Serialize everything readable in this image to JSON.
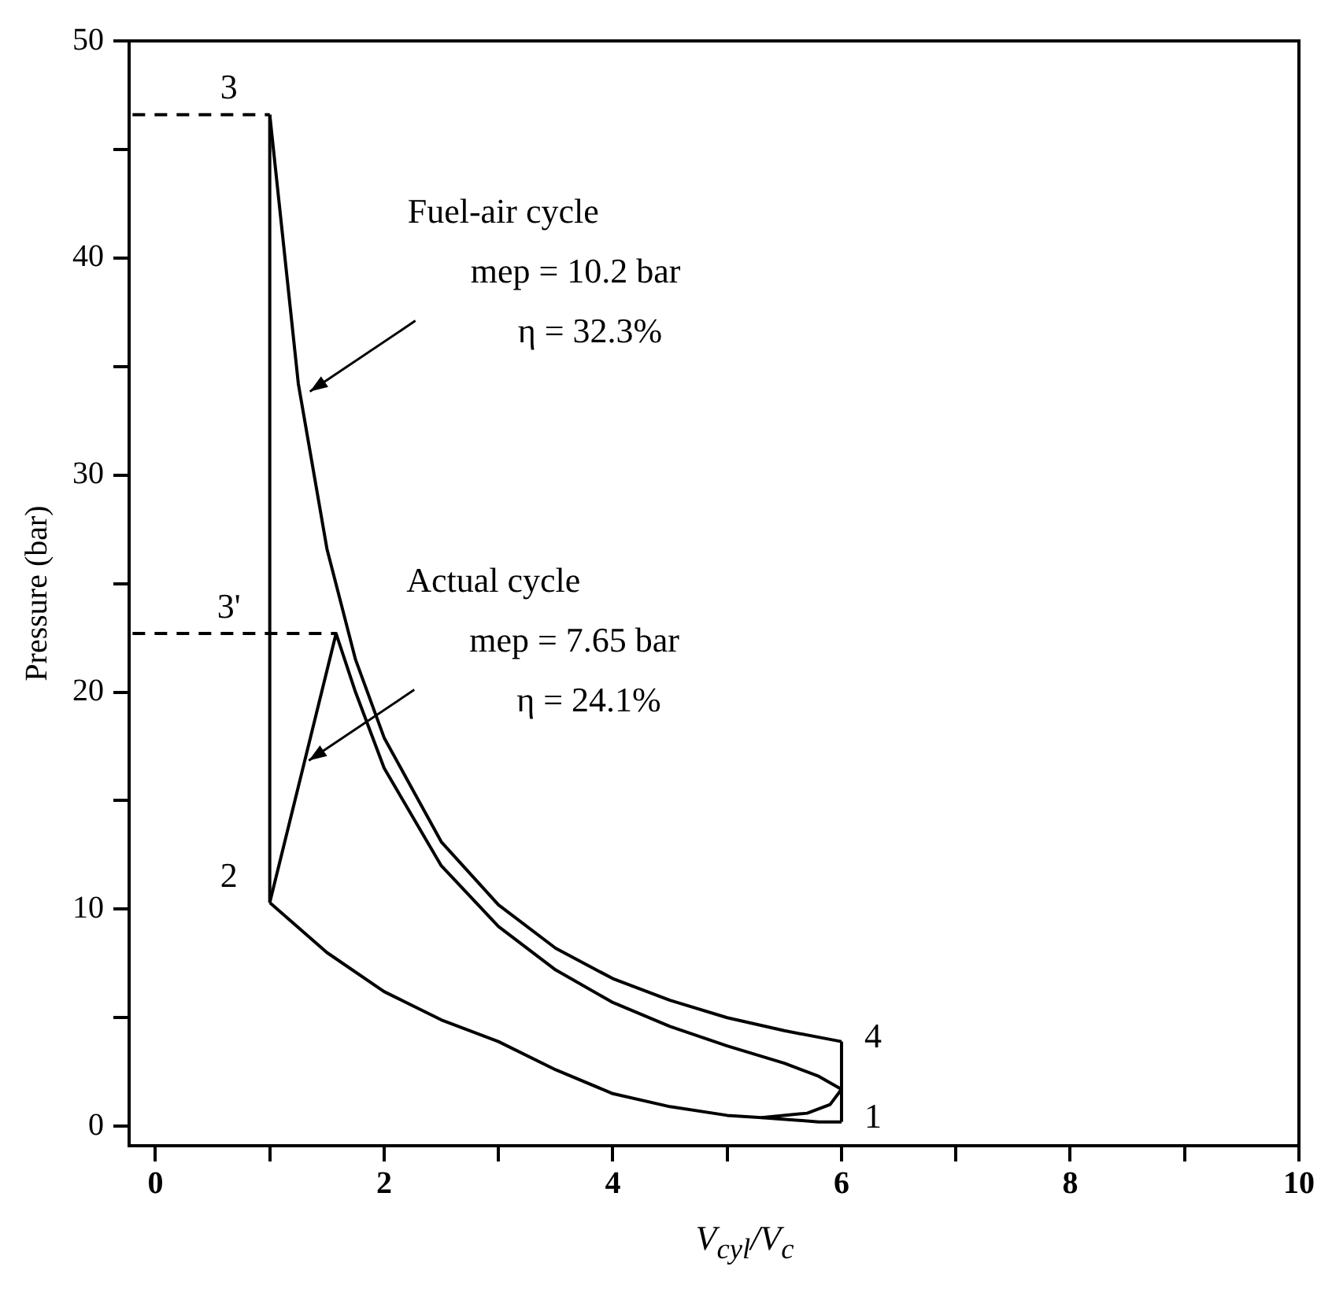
{
  "chart_data": {
    "type": "line",
    "xlabel": "V$_{cyl}$/V$_{c}$",
    "ylabel": "Pressure (bar)",
    "xlim": [
      -0.23,
      10
    ],
    "xticks": [
      0,
      {
        "value": 1,
        "label": null
      },
      2,
      {
        "value": 3,
        "label": null
      },
      4,
      {
        "value": 5,
        "label": null
      },
      6,
      {
        "value": 7,
        "label": null
      },
      8,
      {
        "value": 9,
        "label": null
      },
      10
    ],
    "ylim": [
      -0.9,
      50
    ],
    "yticks": [
      0,
      {
        "value": 5,
        "label": null
      },
      10,
      {
        "value": 15,
        "label": null
      },
      20,
      {
        "value": 25,
        "label": null
      },
      30,
      {
        "value": 35,
        "label": null
      },
      40,
      {
        "value": 45,
        "label": null
      },
      50
    ],
    "grid": false,
    "legend": false,
    "marker": "none",
    "series": [
      {
        "color": "#000000",
        "line_style": "solid",
        "x": [
          1,
          1.25,
          1.5,
          1.75,
          2,
          2.5,
          3,
          3.5,
          4,
          4.5,
          5,
          5.5,
          6
        ],
        "values": [
          46.6,
          34.2,
          26.6,
          21.5,
          17.9,
          13.1,
          10.2,
          8.2,
          6.8,
          5.8,
          5.0,
          4.4,
          3.9
        ]
      },
      {
        "color": "#000000",
        "line_style": "solid",
        "x": [
          1,
          1
        ],
        "values": [
          10.3,
          46.6
        ]
      },
      {
        "color": "#000000",
        "line_style": "solid",
        "x": [
          6,
          6
        ],
        "values": [
          0.2,
          3.9
        ]
      },
      {
        "color": "#000000",
        "line_style": "solid",
        "x": [
          1,
          1.5,
          2,
          2.5,
          3,
          3.5,
          4,
          4.5,
          5,
          5.3,
          5.8,
          6
        ],
        "values": [
          10.3,
          8.0,
          6.2,
          4.9,
          3.9,
          2.6,
          1.5,
          0.9,
          0.5,
          0.4,
          0.2,
          0.2
        ]
      },
      {
        "color": "#000000",
        "line_style": "solid",
        "x": [
          1,
          1.58,
          1.75,
          2,
          2.5,
          3,
          3.5,
          4,
          4.5,
          5,
          5.5,
          5.8,
          6
        ],
        "values": [
          10.3,
          22.7,
          20.0,
          16.5,
          12.0,
          9.2,
          7.2,
          5.7,
          4.6,
          3.7,
          2.9,
          2.3,
          1.7
        ]
      },
      {
        "color": "#000000",
        "line_style": "solid",
        "x": [
          5.3,
          5.7,
          5.9,
          6
        ],
        "values": [
          0.4,
          0.6,
          1.0,
          1.7
        ]
      },
      {
        "color": "#000000",
        "line_style": "dashed",
        "x": [
          -0.2,
          1
        ],
        "values": [
          46.6,
          46.6
        ]
      },
      {
        "color": "#000000",
        "line_style": "dashed",
        "x": [
          -0.2,
          1.58
        ],
        "values": [
          22.7,
          22.7
        ]
      }
    ],
    "annotations": [
      {
        "text": "3",
        "x": 1,
        "y": 46.6
      },
      {
        "text": "3'",
        "x": 1,
        "y": 22.7
      },
      {
        "text": "2",
        "x": 1,
        "y": 10.3
      },
      {
        "text": "4",
        "x": 6,
        "y": 3.9
      },
      {
        "text": "1",
        "x": 6,
        "y": 0.2
      },
      {
        "text": "Fuel-air cycle\nmep = 10.2 bar\nη = 32.3%",
        "x": 1.31,
        "y": 33.7
      },
      {
        "text": "Actual cycle\nmep = 7.65 bar\nη = 24.1%",
        "x": 1.3,
        "y": 16.7
      }
    ]
  }
}
